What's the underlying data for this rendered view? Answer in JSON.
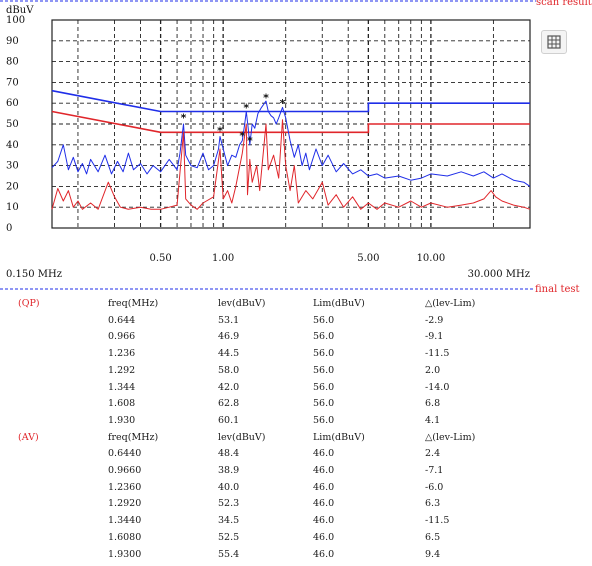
{
  "top_right_text": "scan result",
  "final_label": "final test",
  "icon": "grid-table-icon",
  "colors": {
    "qp": "#1f2ee8",
    "av": "#e0262b",
    "grid": "#222222",
    "marker": "#111111"
  },
  "chart_data": {
    "type": "line",
    "ylabel": "dBuV",
    "xscale": "log",
    "xlim": [
      0.15,
      30.0
    ],
    "ylim": [
      0,
      100
    ],
    "yticks": [
      0,
      10,
      20,
      30,
      40,
      50,
      60,
      70,
      80,
      90,
      100
    ],
    "xtick_labels": [
      {
        "value": 0.15,
        "text": "0.150 MHz"
      },
      {
        "value": 0.5,
        "text": "0.50"
      },
      {
        "value": 1.0,
        "text": "1.00"
      },
      {
        "value": 5.0,
        "text": "5.00"
      },
      {
        "value": 10.0,
        "text": "10.00"
      },
      {
        "value": 30.0,
        "text": "30.000 MHz"
      }
    ],
    "grid": true,
    "limit_lines": [
      {
        "color": "#1f2ee8",
        "points": [
          [
            0.15,
            66
          ],
          [
            0.5,
            56
          ],
          [
            5.0,
            56
          ],
          [
            5.0,
            60
          ],
          [
            30.0,
            60
          ]
        ]
      },
      {
        "color": "#e0262b",
        "points": [
          [
            0.15,
            56
          ],
          [
            0.5,
            46
          ],
          [
            5.0,
            46
          ],
          [
            5.0,
            50
          ],
          [
            30.0,
            50
          ]
        ]
      }
    ],
    "series": [
      {
        "color": "#1f2ee8",
        "points": [
          [
            0.15,
            29
          ],
          [
            0.16,
            32
          ],
          [
            0.17,
            40
          ],
          [
            0.18,
            28
          ],
          [
            0.19,
            34
          ],
          [
            0.2,
            27
          ],
          [
            0.21,
            31
          ],
          [
            0.22,
            26
          ],
          [
            0.23,
            33
          ],
          [
            0.25,
            27
          ],
          [
            0.27,
            35
          ],
          [
            0.29,
            26
          ],
          [
            0.31,
            32
          ],
          [
            0.33,
            27
          ],
          [
            0.35,
            36
          ],
          [
            0.37,
            28
          ],
          [
            0.4,
            31
          ],
          [
            0.43,
            26
          ],
          [
            0.46,
            30
          ],
          [
            0.5,
            27
          ],
          [
            0.55,
            33
          ],
          [
            0.6,
            28
          ],
          [
            0.62,
            36
          ],
          [
            0.644,
            50
          ],
          [
            0.66,
            35
          ],
          [
            0.7,
            30
          ],
          [
            0.75,
            29
          ],
          [
            0.8,
            36
          ],
          [
            0.85,
            28
          ],
          [
            0.9,
            30
          ],
          [
            0.95,
            38
          ],
          [
            0.966,
            44
          ],
          [
            1.0,
            38
          ],
          [
            1.05,
            30
          ],
          [
            1.1,
            35
          ],
          [
            1.15,
            34
          ],
          [
            1.2,
            40
          ],
          [
            1.236,
            42
          ],
          [
            1.27,
            50
          ],
          [
            1.292,
            56
          ],
          [
            1.32,
            48
          ],
          [
            1.344,
            40
          ],
          [
            1.38,
            50
          ],
          [
            1.42,
            48
          ],
          [
            1.47,
            55
          ],
          [
            1.53,
            58
          ],
          [
            1.608,
            61
          ],
          [
            1.65,
            56
          ],
          [
            1.7,
            54
          ],
          [
            1.75,
            53
          ],
          [
            1.8,
            50
          ],
          [
            1.85,
            53
          ],
          [
            1.93,
            58
          ],
          [
            2.0,
            53
          ],
          [
            2.1,
            42
          ],
          [
            2.2,
            34
          ],
          [
            2.3,
            40
          ],
          [
            2.4,
            30
          ],
          [
            2.5,
            36
          ],
          [
            2.6,
            28
          ],
          [
            2.8,
            38
          ],
          [
            3.0,
            30
          ],
          [
            3.2,
            35
          ],
          [
            3.5,
            27
          ],
          [
            3.8,
            31
          ],
          [
            4.2,
            26
          ],
          [
            4.6,
            28
          ],
          [
            5.0,
            25
          ],
          [
            5.5,
            26
          ],
          [
            6.0,
            24
          ],
          [
            7.0,
            25
          ],
          [
            8.0,
            23
          ],
          [
            9.0,
            24
          ],
          [
            10.0,
            26
          ],
          [
            12.0,
            25
          ],
          [
            14.0,
            27
          ],
          [
            16.0,
            25
          ],
          [
            18.0,
            27
          ],
          [
            20.0,
            24
          ],
          [
            22.0,
            26
          ],
          [
            25.0,
            23
          ],
          [
            28.0,
            22
          ],
          [
            30.0,
            20
          ]
        ]
      },
      {
        "color": "#e0262b",
        "points": [
          [
            0.15,
            9
          ],
          [
            0.16,
            19
          ],
          [
            0.17,
            13
          ],
          [
            0.18,
            18
          ],
          [
            0.19,
            10
          ],
          [
            0.2,
            13
          ],
          [
            0.21,
            9
          ],
          [
            0.23,
            12
          ],
          [
            0.25,
            9
          ],
          [
            0.28,
            22
          ],
          [
            0.3,
            15
          ],
          [
            0.32,
            10
          ],
          [
            0.35,
            9
          ],
          [
            0.4,
            10
          ],
          [
            0.45,
            9
          ],
          [
            0.5,
            9
          ],
          [
            0.55,
            10
          ],
          [
            0.6,
            11
          ],
          [
            0.644,
            46
          ],
          [
            0.66,
            14
          ],
          [
            0.7,
            11
          ],
          [
            0.75,
            9
          ],
          [
            0.8,
            12
          ],
          [
            0.9,
            15
          ],
          [
            0.966,
            38
          ],
          [
            1.0,
            14
          ],
          [
            1.05,
            18
          ],
          [
            1.1,
            12
          ],
          [
            1.15,
            20
          ],
          [
            1.236,
            36
          ],
          [
            1.292,
            50
          ],
          [
            1.31,
            16
          ],
          [
            1.344,
            33
          ],
          [
            1.38,
            22
          ],
          [
            1.45,
            30
          ],
          [
            1.5,
            18
          ],
          [
            1.608,
            50
          ],
          [
            1.65,
            28
          ],
          [
            1.75,
            35
          ],
          [
            1.85,
            24
          ],
          [
            1.93,
            52
          ],
          [
            2.0,
            30
          ],
          [
            2.1,
            18
          ],
          [
            2.2,
            30
          ],
          [
            2.3,
            12
          ],
          [
            2.5,
            18
          ],
          [
            2.7,
            14
          ],
          [
            3.0,
            22
          ],
          [
            3.2,
            11
          ],
          [
            3.5,
            16
          ],
          [
            3.8,
            10
          ],
          [
            4.2,
            15
          ],
          [
            4.6,
            9
          ],
          [
            5.0,
            12
          ],
          [
            5.5,
            9
          ],
          [
            6.0,
            12
          ],
          [
            7.0,
            10
          ],
          [
            8.0,
            13
          ],
          [
            9.0,
            10
          ],
          [
            10.0,
            12
          ],
          [
            12.0,
            10
          ],
          [
            14.0,
            11
          ],
          [
            16.0,
            12
          ],
          [
            18.0,
            14
          ],
          [
            19.5,
            18
          ],
          [
            20.5,
            15
          ],
          [
            22.0,
            13
          ],
          [
            25.0,
            11
          ],
          [
            28.0,
            10
          ],
          [
            30.0,
            9
          ]
        ]
      }
    ],
    "markers": [
      [
        0.644,
        53.1
      ],
      [
        0.966,
        46.9
      ],
      [
        1.236,
        44.5
      ],
      [
        1.292,
        58.0
      ],
      [
        1.344,
        42.0
      ],
      [
        1.608,
        62.8
      ],
      [
        1.93,
        60.1
      ]
    ]
  },
  "table": {
    "headers": [
      "freq(MHz)",
      "lev(dBuV)",
      "Lim(dBuV)",
      "△(lev-Lim)"
    ],
    "qp": {
      "tag": "(QP)",
      "rows": [
        [
          "0.644",
          "53.1",
          "56.0",
          "-2.9"
        ],
        [
          "0.966",
          "46.9",
          "56.0",
          "-9.1"
        ],
        [
          "1.236",
          "44.5",
          "56.0",
          "-11.5"
        ],
        [
          "1.292",
          "58.0",
          "56.0",
          "2.0"
        ],
        [
          "1.344",
          "42.0",
          "56.0",
          "-14.0"
        ],
        [
          "1.608",
          "62.8",
          "56.0",
          "6.8"
        ],
        [
          "1.930",
          "60.1",
          "56.0",
          "4.1"
        ]
      ]
    },
    "av": {
      "tag": "(AV)",
      "rows": [
        [
          "0.6440",
          "48.4",
          "46.0",
          "2.4"
        ],
        [
          "0.9660",
          "38.9",
          "46.0",
          "-7.1"
        ],
        [
          "1.2360",
          "40.0",
          "46.0",
          "-6.0"
        ],
        [
          "1.2920",
          "52.3",
          "46.0",
          "6.3"
        ],
        [
          "1.3440",
          "34.5",
          "46.0",
          "-11.5"
        ],
        [
          "1.6080",
          "52.5",
          "46.0",
          "6.5"
        ],
        [
          "1.9300",
          "55.4",
          "46.0",
          "9.4"
        ]
      ]
    }
  }
}
